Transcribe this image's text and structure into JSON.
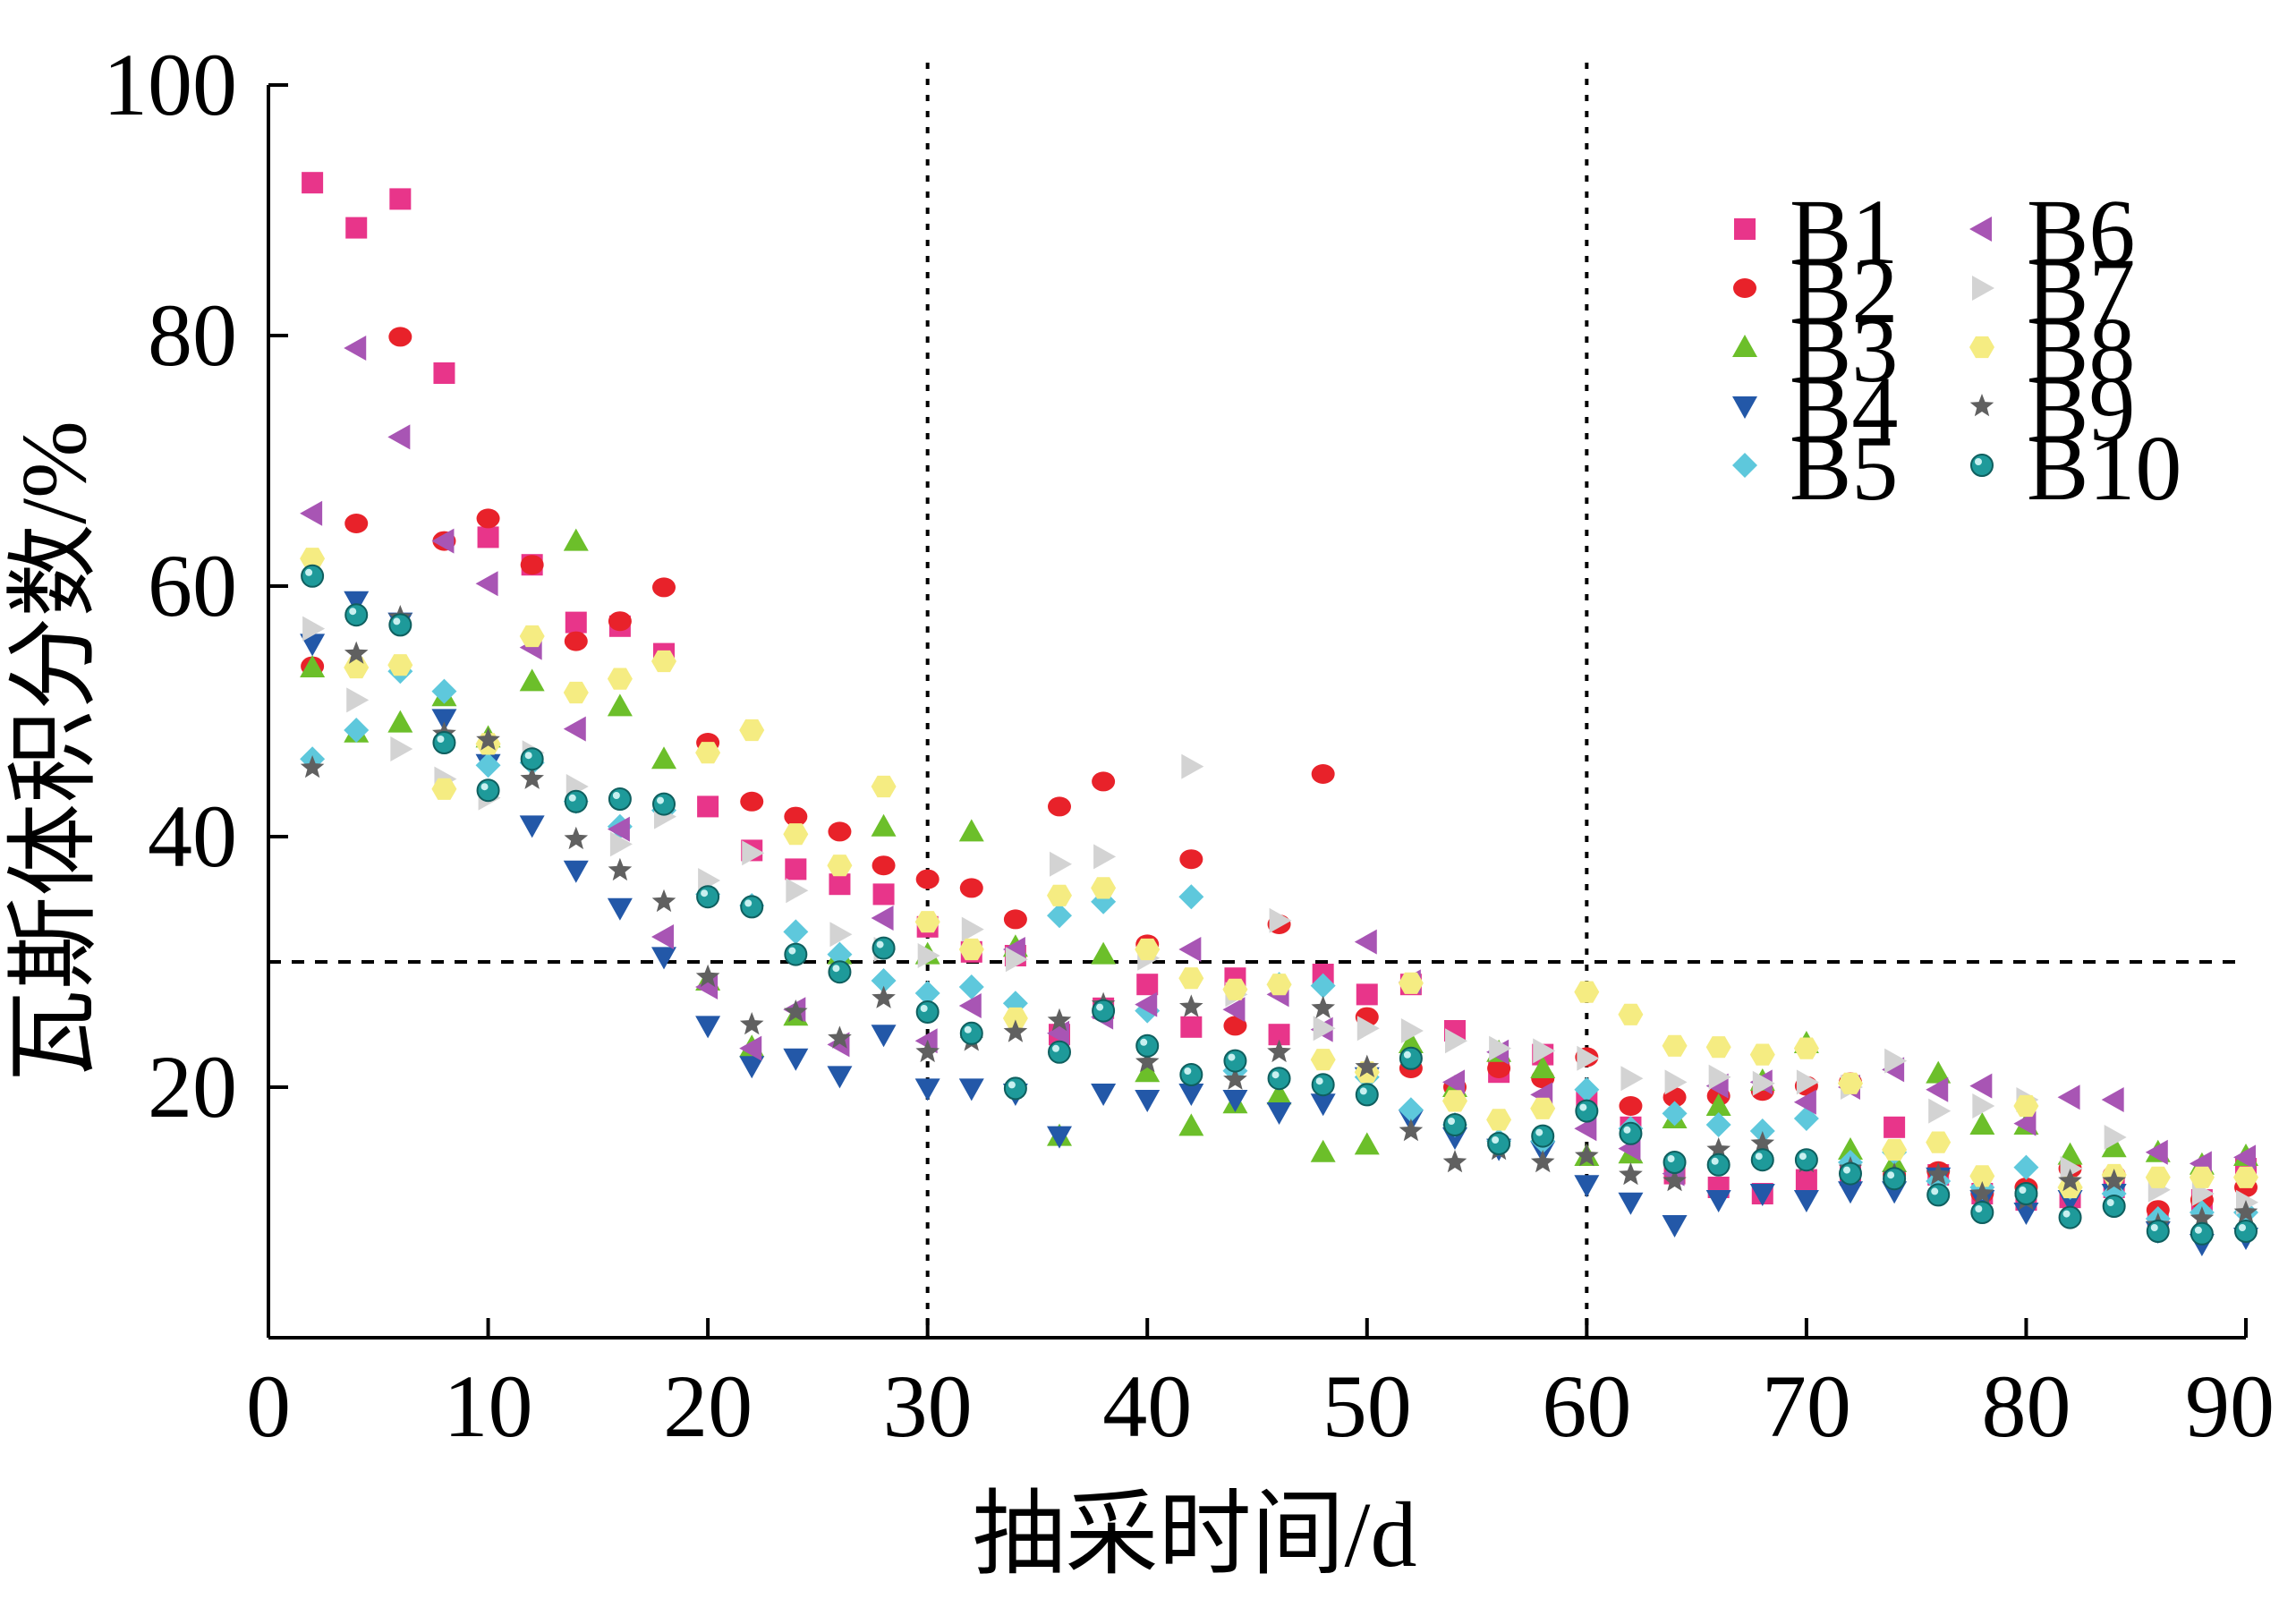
{
  "chart_data": {
    "type": "scatter",
    "xlabel": "抽采时间/d",
    "ylabel": "瓦斯体积分数/%",
    "xlim": [
      0,
      90
    ],
    "ylim": [
      0,
      100
    ],
    "x_ticks": [
      "0",
      "10",
      "20",
      "30",
      "40",
      "50",
      "60",
      "70",
      "80",
      "90"
    ],
    "y_ticks": [
      "20",
      "40",
      "60",
      "80",
      "100"
    ],
    "x_tick_values": [
      0,
      10,
      20,
      30,
      40,
      50,
      60,
      70,
      80,
      90
    ],
    "y_tick_values": [
      20,
      40,
      60,
      80,
      100
    ],
    "grid": false,
    "legend_position": "top-right",
    "reference_lines": [
      {
        "axis": "x",
        "value": 30,
        "style": "dotted"
      },
      {
        "axis": "x",
        "value": 60,
        "style": "dotted"
      },
      {
        "axis": "y",
        "value": 30,
        "style": "dashed"
      }
    ],
    "series": [
      {
        "name": "B1",
        "marker": "square",
        "color": "#e8358a",
        "x": [
          2,
          4,
          6,
          8,
          10,
          12,
          14,
          16,
          18,
          20,
          22,
          24,
          26,
          28,
          30,
          32,
          34,
          36,
          38,
          40,
          42,
          44,
          46,
          48,
          50,
          52,
          54,
          56,
          58,
          60,
          62,
          64,
          66,
          68,
          70,
          72,
          74,
          76,
          78,
          80,
          82,
          84,
          86,
          88,
          90
        ],
        "y": [
          92.2,
          88.6,
          90.9,
          77.0,
          63.9,
          61.7,
          57.1,
          56.8,
          54.6,
          42.4,
          38.9,
          37.4,
          36.2,
          35.4,
          32.8,
          30.8,
          30.5,
          24.2,
          26.3,
          28.2,
          24.8,
          28.7,
          24.2,
          29.0,
          27.4,
          28.2,
          24.5,
          21.2,
          22.6,
          19.0,
          16.8,
          13.1,
          12.0,
          11.5,
          12.6,
          13.0,
          16.8,
          13.0,
          11.5,
          11.0,
          11.2,
          12.0,
          9.5,
          11.0,
          13.5
        ]
      },
      {
        "name": "B2",
        "marker": "circle",
        "color": "#e8222a",
        "x": [
          2,
          4,
          6,
          8,
          10,
          12,
          14,
          16,
          18,
          20,
          22,
          24,
          26,
          28,
          30,
          32,
          34,
          36,
          38,
          40,
          42,
          44,
          46,
          48,
          50,
          52,
          54,
          56,
          58,
          60,
          62,
          64,
          66,
          68,
          70,
          72,
          74,
          76,
          78,
          80,
          82,
          84,
          86,
          88,
          90
        ],
        "y": [
          53.6,
          65.0,
          79.9,
          63.6,
          65.4,
          61.7,
          55.6,
          57.2,
          59.9,
          47.5,
          42.8,
          41.6,
          40.4,
          37.7,
          36.6,
          35.9,
          33.4,
          42.4,
          44.4,
          31.4,
          38.2,
          24.9,
          33.0,
          45.0,
          25.6,
          21.5,
          20.0,
          21.5,
          20.7,
          22.4,
          18.5,
          19.2,
          19.3,
          19.7,
          20.1,
          20.4,
          13.0,
          13.3,
          11.5,
          12.0,
          13.5,
          13.0,
          10.2,
          11.0,
          12.0
        ]
      },
      {
        "name": "B3",
        "marker": "triangle-up",
        "color": "#6cbf2a",
        "x": [
          2,
          4,
          6,
          8,
          10,
          12,
          14,
          16,
          18,
          20,
          22,
          24,
          26,
          28,
          30,
          32,
          34,
          36,
          38,
          40,
          42,
          44,
          46,
          48,
          50,
          52,
          54,
          56,
          58,
          60,
          62,
          64,
          66,
          68,
          70,
          72,
          74,
          76,
          78,
          80,
          82,
          84,
          86,
          88,
          90
        ],
        "y": [
          53.5,
          48.3,
          49.1,
          51.2,
          47.9,
          52.4,
          63.6,
          50.4,
          46.2,
          28.5,
          23.2,
          25.7,
          30.6,
          40.8,
          30.6,
          40.4,
          31.2,
          16.1,
          30.6,
          21.2,
          16.9,
          18.7,
          19.4,
          14.8,
          15.4,
          23.5,
          20.0,
          22.8,
          21.5,
          14.5,
          14.7,
          17.5,
          18.5,
          20.5,
          23.5,
          15.0,
          14.0,
          21.1,
          17.0,
          17.0,
          14.6,
          15.2,
          14.8,
          13.8,
          14.5
        ]
      },
      {
        "name": "B4",
        "marker": "triangle-down",
        "color": "#2358a8",
        "x": [
          2,
          4,
          6,
          8,
          10,
          12,
          14,
          16,
          18,
          20,
          22,
          24,
          26,
          28,
          30,
          32,
          34,
          36,
          38,
          40,
          42,
          44,
          46,
          48,
          50,
          52,
          54,
          56,
          58,
          60,
          62,
          64,
          66,
          68,
          70,
          72,
          74,
          76,
          78,
          80,
          82,
          84,
          86,
          88,
          90
        ],
        "y": [
          55.4,
          58.8,
          57.1,
          49.4,
          45.8,
          40.9,
          37.3,
          34.3,
          30.4,
          24.9,
          21.7,
          22.3,
          20.9,
          24.2,
          19.9,
          19.9,
          19.5,
          16.1,
          19.5,
          19.0,
          19.5,
          19.0,
          18.0,
          18.7,
          20.8,
          17.4,
          16.0,
          15.1,
          14.9,
          12.2,
          10.8,
          9.0,
          11.0,
          11.5,
          11.0,
          11.7,
          11.7,
          12.8,
          11.0,
          10.0,
          11.0,
          11.5,
          8.5,
          7.5,
          8.0
        ]
      },
      {
        "name": "B5",
        "marker": "diamond",
        "color": "#5ec8dc",
        "x": [
          2,
          4,
          6,
          8,
          10,
          12,
          14,
          16,
          18,
          20,
          22,
          24,
          26,
          28,
          30,
          32,
          34,
          36,
          38,
          40,
          42,
          44,
          46,
          48,
          50,
          52,
          54,
          56,
          58,
          60,
          62,
          64,
          66,
          68,
          70,
          72,
          74,
          76,
          78,
          80,
          82,
          84,
          86,
          88,
          90
        ],
        "y": [
          46.2,
          48.5,
          53.2,
          51.6,
          45.7,
          45.9,
          42.8,
          40.8,
          42.1,
          35.4,
          34.5,
          32.4,
          30.6,
          28.5,
          27.5,
          28.0,
          26.7,
          33.7,
          34.8,
          26.1,
          35.2,
          21.3,
          28.2,
          28.1,
          20.8,
          18.2,
          17.0,
          15.7,
          15.7,
          19.8,
          16.7,
          17.9,
          17.0,
          16.5,
          17.5,
          14.0,
          14.8,
          12.5,
          12.0,
          13.6,
          12.0,
          11.5,
          9.5,
          10.0,
          10.0
        ]
      },
      {
        "name": "B6",
        "marker": "triangle-left",
        "color": "#a855b4",
        "x": [
          2,
          4,
          6,
          8,
          10,
          12,
          14,
          16,
          18,
          20,
          22,
          24,
          26,
          28,
          30,
          32,
          34,
          36,
          38,
          40,
          42,
          44,
          46,
          48,
          50,
          52,
          54,
          56,
          58,
          60,
          62,
          64,
          66,
          68,
          70,
          72,
          74,
          76,
          78,
          80,
          82,
          84,
          86,
          88,
          90
        ],
        "y": [
          65.8,
          79.0,
          71.9,
          63.6,
          60.2,
          55.1,
          48.6,
          40.6,
          32.0,
          28.0,
          23.1,
          26.2,
          23.4,
          33.5,
          23.7,
          26.5,
          31.0,
          24.3,
          25.6,
          26.6,
          31.0,
          26.2,
          27.4,
          24.6,
          31.6,
          28.4,
          20.4,
          22.8,
          19.4,
          16.7,
          15.1,
          13.1,
          20.1,
          20.4,
          18.8,
          20.0,
          21.4,
          19.8,
          20.1,
          17.1,
          19.2,
          19.0,
          14.8,
          13.9,
          14.4
        ]
      },
      {
        "name": "B7",
        "marker": "triangle-right",
        "color": "#d3d3d3",
        "x": [
          2,
          4,
          6,
          8,
          10,
          12,
          14,
          16,
          18,
          20,
          22,
          24,
          26,
          28,
          30,
          32,
          34,
          36,
          38,
          40,
          42,
          44,
          46,
          48,
          50,
          52,
          54,
          56,
          58,
          60,
          62,
          64,
          66,
          68,
          70,
          72,
          74,
          76,
          78,
          80,
          82,
          84,
          86,
          88,
          90
        ],
        "y": [
          56.6,
          50.9,
          47.0,
          44.6,
          43.1,
          46.7,
          44.0,
          39.4,
          41.6,
          36.5,
          38.7,
          35.7,
          32.2,
          31.0,
          30.5,
          32.6,
          30.2,
          37.8,
          38.4,
          30.3,
          45.6,
          27.4,
          33.3,
          24.7,
          24.7,
          24.5,
          23.7,
          23.1,
          22.9,
          22.3,
          20.7,
          20.4,
          20.8,
          20.3,
          20.4,
          20.0,
          22.1,
          18.1,
          18.5,
          19.0,
          13.5,
          16.0,
          11.8,
          11.5,
          10.8
        ]
      },
      {
        "name": "B8",
        "marker": "hexagon",
        "color": "#f5ec82",
        "x": [
          2,
          4,
          6,
          8,
          10,
          12,
          14,
          16,
          18,
          20,
          22,
          24,
          26,
          28,
          30,
          32,
          34,
          36,
          38,
          40,
          42,
          44,
          46,
          48,
          50,
          52,
          54,
          56,
          58,
          60,
          62,
          64,
          66,
          68,
          70,
          72,
          74,
          76,
          78,
          80,
          82,
          84,
          86,
          88,
          90
        ],
        "y": [
          62.2,
          53.5,
          53.7,
          43.8,
          47.4,
          56.0,
          51.5,
          52.6,
          54.0,
          46.7,
          48.5,
          40.2,
          37.7,
          44.0,
          33.2,
          31.0,
          25.5,
          35.3,
          35.9,
          31.0,
          28.7,
          27.8,
          28.2,
          22.2,
          21.2,
          28.3,
          18.9,
          17.4,
          18.3,
          27.6,
          25.8,
          23.3,
          23.2,
          22.6,
          23.1,
          20.3,
          15.0,
          15.6,
          12.9,
          18.5,
          12.0,
          13.0,
          12.8,
          12.8,
          12.8
        ]
      },
      {
        "name": "B9",
        "marker": "star",
        "color": "#606060",
        "x": [
          2,
          4,
          6,
          8,
          10,
          12,
          14,
          16,
          18,
          20,
          22,
          24,
          26,
          28,
          30,
          32,
          34,
          36,
          38,
          40,
          42,
          44,
          46,
          48,
          50,
          52,
          54,
          56,
          58,
          60,
          62,
          64,
          66,
          68,
          70,
          72,
          74,
          76,
          78,
          80,
          82,
          84,
          86,
          88,
          90
        ],
        "y": [
          45.5,
          54.6,
          57.5,
          48.2,
          47.7,
          44.6,
          39.8,
          37.3,
          34.8,
          28.8,
          25.0,
          26.0,
          23.9,
          27.1,
          22.8,
          23.7,
          24.4,
          25.3,
          26.6,
          22.0,
          26.4,
          20.6,
          22.8,
          26.3,
          21.6,
          16.5,
          14.0,
          15.0,
          14.0,
          14.5,
          13.0,
          12.5,
          15.0,
          15.5,
          14.0,
          13.5,
          13.0,
          13.0,
          11.5,
          11.0,
          12.5,
          12.5,
          9.0,
          9.5,
          10.0
        ]
      },
      {
        "name": "B10",
        "marker": "sphere",
        "color": "#1e9a9a",
        "x": [
          2,
          4,
          6,
          8,
          10,
          12,
          14,
          16,
          18,
          20,
          22,
          24,
          26,
          28,
          30,
          32,
          34,
          36,
          38,
          40,
          42,
          44,
          46,
          48,
          50,
          52,
          54,
          56,
          58,
          60,
          62,
          64,
          66,
          68,
          70,
          72,
          74,
          76,
          78,
          80,
          82,
          84,
          86,
          88,
          90
        ],
        "y": [
          60.8,
          57.7,
          56.9,
          47.5,
          43.7,
          46.2,
          42.8,
          43.0,
          42.6,
          35.2,
          34.4,
          30.6,
          29.2,
          31.1,
          26.0,
          24.3,
          19.9,
          22.8,
          26.1,
          23.3,
          21.0,
          22.1,
          20.7,
          20.2,
          19.4,
          22.3,
          17.0,
          15.5,
          16.1,
          18.1,
          16.3,
          14.0,
          13.8,
          14.2,
          14.2,
          13.1,
          12.7,
          11.4,
          10.0,
          11.5,
          9.6,
          10.5,
          8.5,
          8.3,
          8.5
        ]
      }
    ]
  }
}
